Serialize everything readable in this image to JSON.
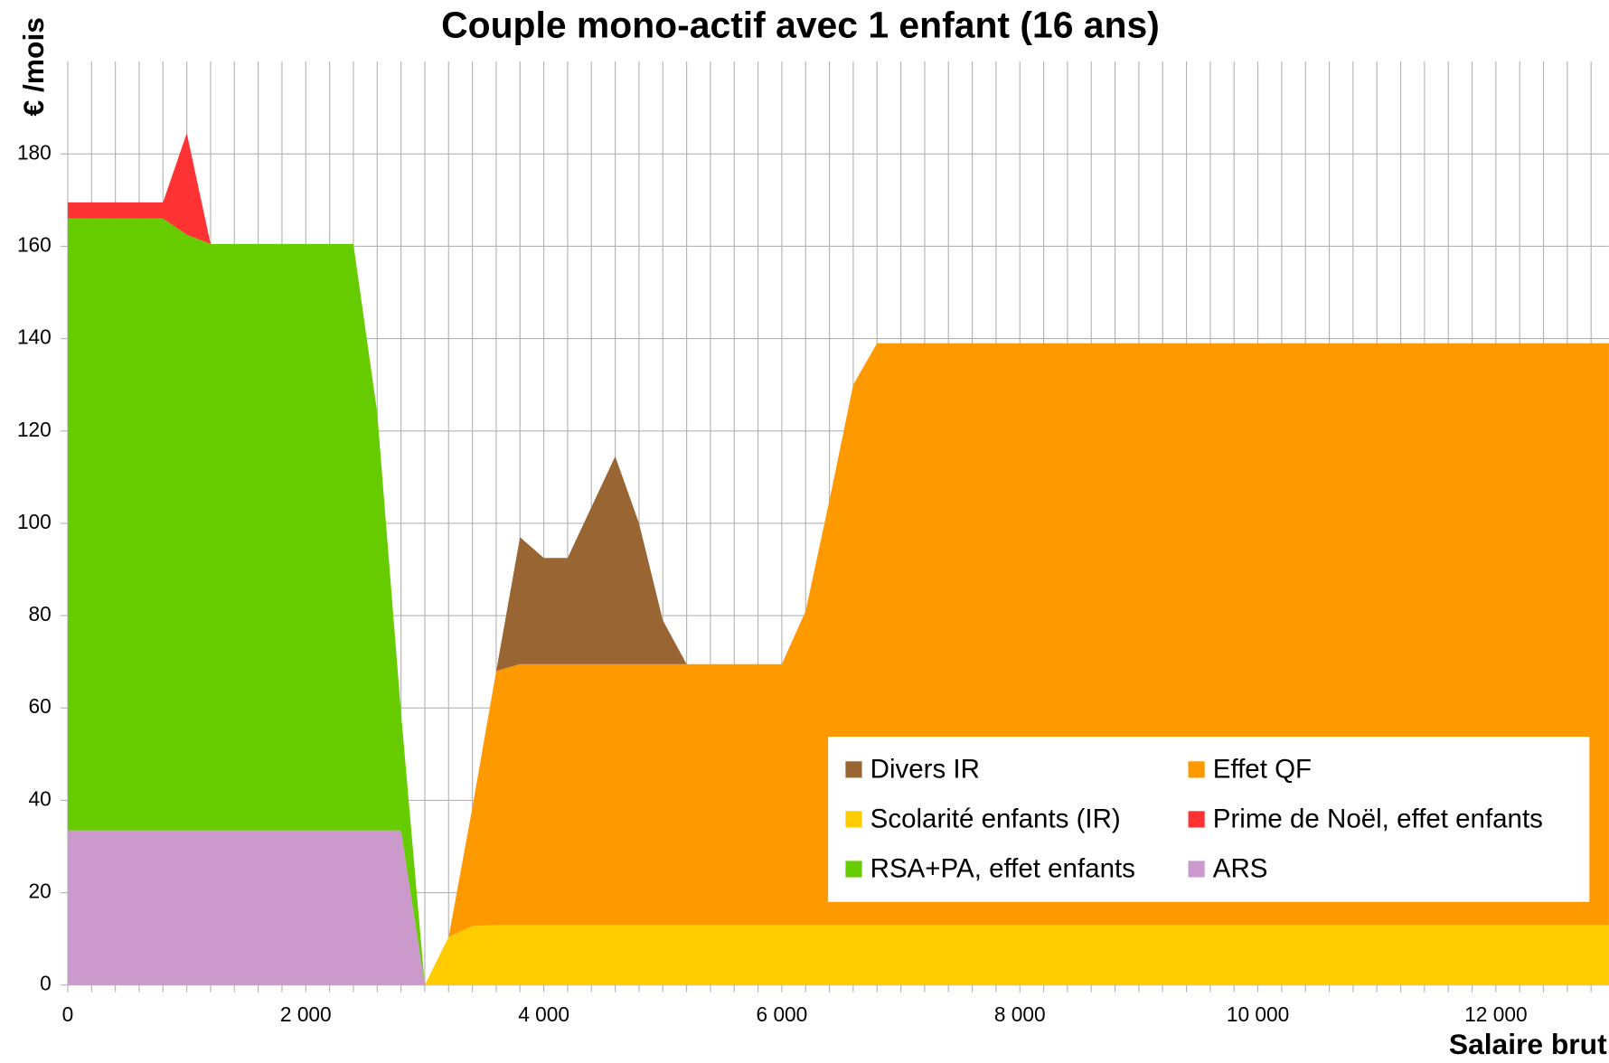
{
  "chart_data": {
    "type": "stacked_area",
    "title": "Couple mono-actif avec 1 enfant  (16 ans)",
    "ylabel": "€ /mois",
    "xlabel": "Salaire brut",
    "x": [
      0,
      800,
      1000,
      1200,
      2400,
      2600,
      2800,
      3000,
      3200,
      3400,
      3600,
      3800,
      4000,
      4200,
      4400,
      4600,
      4800,
      5000,
      5200,
      6000,
      6200,
      6400,
      6600,
      6800,
      12950
    ],
    "series": [
      {
        "name": "ARS",
        "color": "#cc99cc",
        "values": [
          33.5,
          33.5,
          33.5,
          33.5,
          33.5,
          33.5,
          33.5,
          0,
          0,
          0,
          0,
          0,
          0,
          0,
          0,
          0,
          0,
          0,
          0,
          0,
          0,
          0,
          0,
          0,
          0
        ]
      },
      {
        "name": "Scolarité enfants (IR)",
        "color": "#ffcc00",
        "values": [
          0,
          0,
          0,
          0,
          0,
          0,
          0,
          0,
          10.4,
          12.8,
          13,
          13,
          13,
          13,
          13,
          13,
          13,
          13,
          13,
          13,
          13,
          13,
          13,
          13,
          13
        ]
      },
      {
        "name": "Effet QF",
        "color": "#ff9900",
        "values": [
          0,
          0,
          0,
          0,
          0,
          0,
          0,
          0,
          0,
          25.7,
          55,
          56.5,
          56.5,
          56.5,
          56.5,
          56.5,
          56.5,
          56.5,
          56.5,
          56.5,
          68,
          92,
          117,
          126,
          126
        ]
      },
      {
        "name": "RSA+PA, effet enfants",
        "color": "#66cc00",
        "values": [
          132.5,
          132.5,
          129,
          127,
          127,
          90.5,
          25.5,
          0,
          0,
          0,
          0,
          0,
          0,
          0,
          0,
          0,
          0,
          0,
          0,
          0,
          0,
          0,
          0,
          0,
          0
        ]
      },
      {
        "name": "Divers IR",
        "color": "#996633",
        "values": [
          0,
          0,
          0,
          0,
          0,
          0,
          0,
          0,
          0,
          0,
          0,
          27.5,
          23,
          23,
          34,
          45,
          30.5,
          9.5,
          0,
          0,
          0,
          0,
          0,
          0,
          0
        ]
      },
      {
        "name": "Prime de Noël, effet enfants",
        "color": "#ff3333",
        "values": [
          3.5,
          3.5,
          22,
          0,
          0,
          0,
          0,
          0,
          0,
          0,
          0,
          0,
          0,
          0,
          0,
          0,
          0,
          0,
          0,
          0,
          0,
          0,
          0,
          0,
          0
        ]
      }
    ],
    "xlim": [
      0,
      12950
    ],
    "ylim": [
      0,
      200
    ],
    "xticks": [
      0,
      {
        "value": 2000,
        "label": "2 000"
      },
      {
        "value": 4000,
        "label": "4 000"
      },
      {
        "value": 6000,
        "label": "6 000"
      },
      {
        "value": 8000,
        "label": "8 000"
      },
      {
        "value": 10000,
        "label": "10 000"
      },
      {
        "value": 12000,
        "label": "12 000"
      }
    ],
    "xminor": [
      0,
      200,
      400,
      600,
      800,
      1000,
      1200,
      1400,
      1600,
      1800,
      2000,
      2200,
      2400,
      2600,
      2800,
      3000,
      3200,
      3400,
      3600,
      3800,
      4000,
      4200,
      4400,
      4600,
      4800,
      5000,
      5200,
      5400,
      5600,
      5800,
      6000,
      6200,
      6400,
      6600,
      6800,
      7000,
      7200,
      7400,
      7600,
      7800,
      8000,
      8200,
      8400,
      8600,
      8800,
      9000,
      9200,
      9400,
      9600,
      9800,
      10000,
      10200,
      10400,
      10600,
      10800,
      11000,
      11200,
      11400,
      11600,
      11800,
      12000,
      12200,
      12400,
      12600,
      12800
    ],
    "yticks": [
      0,
      20,
      40,
      60,
      80,
      100,
      120,
      140,
      160,
      180
    ],
    "grid": true,
    "legend": "lower right"
  }
}
